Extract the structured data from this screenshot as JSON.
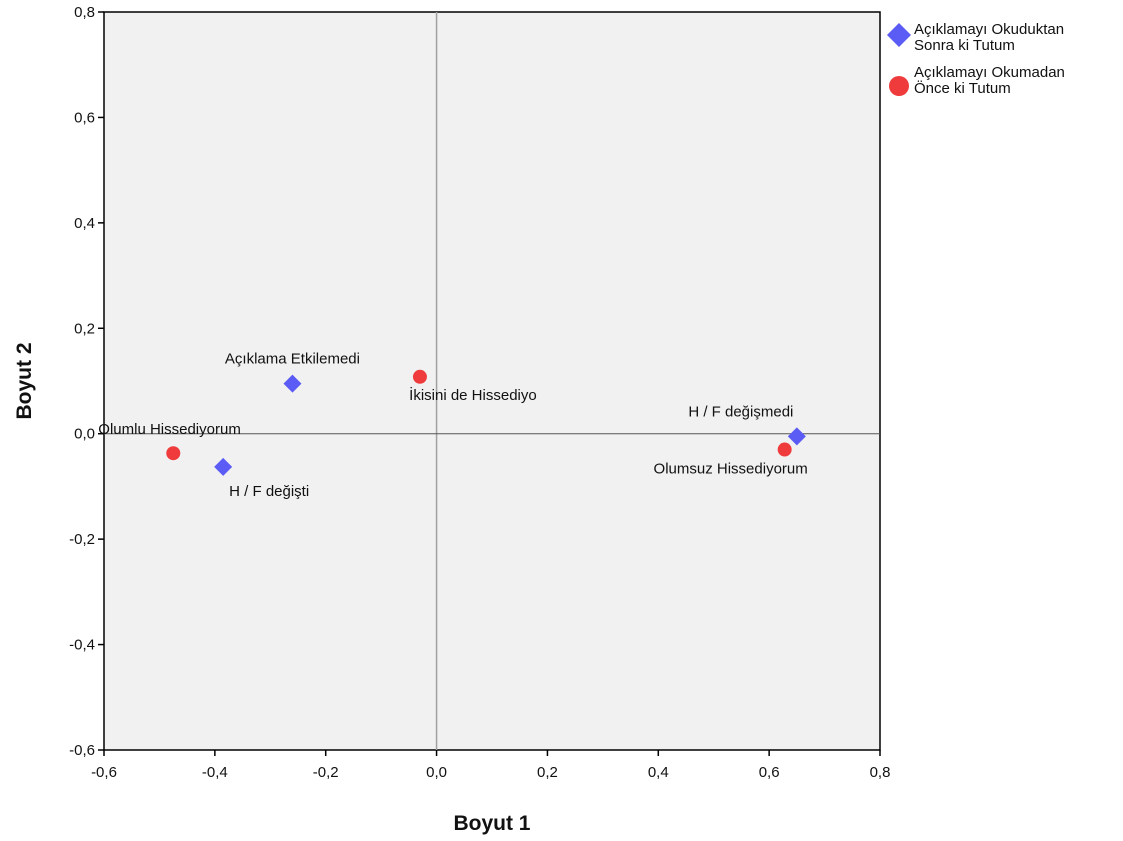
{
  "chart_data": {
    "type": "scatter",
    "title": "",
    "xlabel": "Boyut 1",
    "ylabel": "Boyut 2",
    "xlim": [
      -0.6,
      0.8
    ],
    "ylim": [
      -0.6,
      0.8
    ],
    "x_ticks": [
      -0.6,
      -0.4,
      -0.2,
      0.0,
      0.2,
      0.4,
      0.6,
      0.8
    ],
    "y_ticks": [
      -0.6,
      -0.4,
      -0.2,
      0.0,
      0.2,
      0.4,
      0.6,
      0.8
    ],
    "x_tick_labels": [
      "-0,6",
      "-0,4",
      "-0,2",
      "0,0",
      "0,2",
      "0,4",
      "0,6",
      "0,8"
    ],
    "y_tick_labels": [
      "-0,6",
      "-0,4",
      "-0,2",
      "0,0",
      "0,2",
      "0,4",
      "0,6",
      "0,8"
    ],
    "grid": false,
    "reference_lines": [
      {
        "axis": "x",
        "value": 0
      },
      {
        "axis": "y",
        "value": 0
      }
    ],
    "legend_position": "right-top",
    "series": [
      {
        "name": "Açıklamayı Okuduktan Sonra ki Tutum",
        "legend_lines": [
          "Açıklamayı Okuduktan",
          "Sonra ki Tutum"
        ],
        "marker": "diamond",
        "color": "#5b5bf5",
        "points": [
          {
            "x": -0.26,
            "y": 0.095,
            "label": "Açıklama Etkilemedi"
          },
          {
            "x": -0.385,
            "y": -0.063,
            "label": "H / F değişti"
          },
          {
            "x": 0.65,
            "y": -0.005,
            "label": "H / F değişmedi"
          }
        ]
      },
      {
        "name": "Açıklamayı Okumadan Önce ki Tutum",
        "legend_lines": [
          "Açıklamayı Okumadan",
          "Önce ki Tutum"
        ],
        "marker": "circle",
        "color": "#ef3b3b",
        "points": [
          {
            "x": -0.475,
            "y": -0.037,
            "label": "Olumlu Hissediyorum"
          },
          {
            "x": -0.03,
            "y": 0.108,
            "label": "İkisini de Hissediyo"
          },
          {
            "x": 0.628,
            "y": -0.03,
            "label": "Olumsuz Hissediyorum"
          }
        ]
      }
    ]
  }
}
